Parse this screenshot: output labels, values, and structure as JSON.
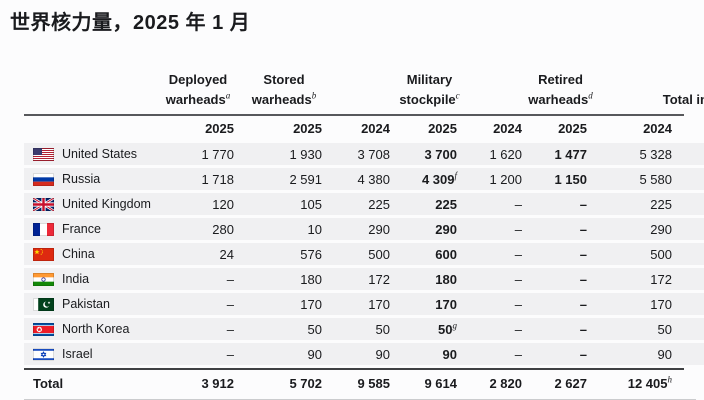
{
  "title": "世界核力量，2025 年 1 月",
  "chart_data": {
    "type": "table",
    "title": "世界核力量，2025 年 1 月",
    "column_groups": [
      {
        "label_line1": "Deployed",
        "label_line2": "warheads^a",
        "grid_col": 1
      },
      {
        "label_line1": "Stored",
        "label_line2": "warheads^b",
        "grid_col": 2
      },
      {
        "label_line1": "Military",
        "label_line2": "stockpile^c",
        "grid_col": 4
      },
      {
        "label_line1": "Retired",
        "label_line2": "warheads^d",
        "grid_col": 6
      },
      {
        "label_line1": "",
        "label_line2": "Total in",
        "grid_col": 7
      }
    ],
    "year_headers": [
      "2025",
      "2025",
      "2024",
      "2025",
      "2024",
      "2025",
      "2024"
    ],
    "bold_value_columns": [
      3,
      5
    ],
    "rows": [
      {
        "country": "United States",
        "flag": "us",
        "values": [
          "1 770",
          "1 930",
          "3 708",
          "3 700",
          "1 620",
          "1 477",
          "5 328"
        ]
      },
      {
        "country": "Russia",
        "flag": "ru",
        "values": [
          "1 718",
          "2 591",
          "4 380",
          "4 309^f",
          "1 200",
          "1 150",
          "5 580"
        ]
      },
      {
        "country": "United Kingdom",
        "flag": "uk",
        "values": [
          "120",
          "105",
          "225",
          "225",
          "–",
          "–",
          "225"
        ]
      },
      {
        "country": "France",
        "flag": "fr",
        "values": [
          "280",
          "10",
          "290",
          "290",
          "–",
          "–",
          "290"
        ]
      },
      {
        "country": "China",
        "flag": "cn",
        "values": [
          "24",
          "576",
          "500",
          "600",
          "–",
          "–",
          "500"
        ]
      },
      {
        "country": "India",
        "flag": "in",
        "values": [
          "–",
          "180",
          "172",
          "180",
          "–",
          "–",
          "172"
        ]
      },
      {
        "country": "Pakistan",
        "flag": "pk",
        "values": [
          "–",
          "170",
          "170",
          "170",
          "–",
          "–",
          "170"
        ]
      },
      {
        "country": "North Korea",
        "flag": "kp",
        "values": [
          "–",
          "50",
          "50",
          "50^g",
          "–",
          "–",
          "50"
        ]
      },
      {
        "country": "Israel",
        "flag": "il",
        "values": [
          "–",
          "90",
          "90",
          "90",
          "–",
          "–",
          "90"
        ]
      }
    ],
    "total": {
      "label": "Total",
      "values": [
        "3 912",
        "5 702",
        "9 585",
        "9 614",
        "2 820",
        "2 627",
        "12 405^h"
      ]
    }
  }
}
